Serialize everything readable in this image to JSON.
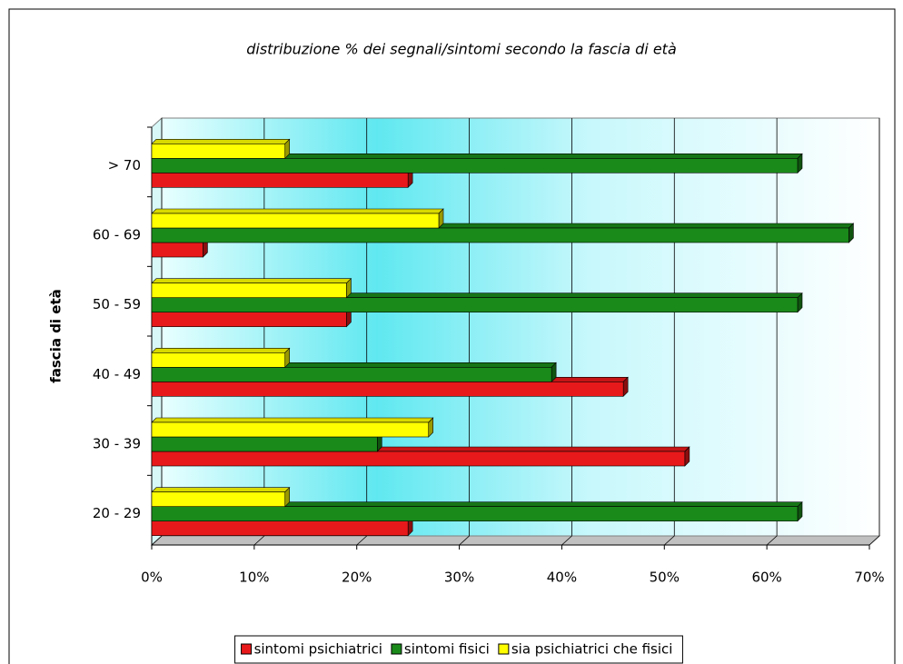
{
  "chart_data": {
    "type": "bar",
    "orientation": "horizontal",
    "title": "distribuzione % dei segnali/sintomi secondo la fascia di età",
    "y_label": "fascia di età",
    "categories": [
      "20 - 29",
      "30 - 39",
      "40 - 49",
      "50 - 59",
      "60 - 69",
      "> 70"
    ],
    "series": [
      {
        "name": "sintomi psichiatrici",
        "color": "#e8191a",
        "values": [
          25,
          52,
          46,
          19,
          5,
          25
        ]
      },
      {
        "name": "sintomi fisici",
        "color": "#1a8a1a",
        "values": [
          63,
          22,
          39,
          63,
          68,
          63
        ]
      },
      {
        "name": "sia psichiatrici che fisici",
        "color": "#ffff00",
        "values": [
          13,
          27,
          13,
          19,
          28,
          13
        ]
      }
    ],
    "xlim": [
      0,
      70
    ],
    "xticks": [
      {
        "value": 0,
        "label": "0%"
      },
      {
        "value": 10,
        "label": "10%"
      },
      {
        "value": 20,
        "label": "20%"
      },
      {
        "value": 30,
        "label": "30%"
      },
      {
        "value": 40,
        "label": "40%"
      },
      {
        "value": 50,
        "label": "50%"
      },
      {
        "value": 60,
        "label": "60%"
      },
      {
        "value": 70,
        "label": "70%"
      }
    ],
    "grid": true,
    "legend": "bottom"
  }
}
